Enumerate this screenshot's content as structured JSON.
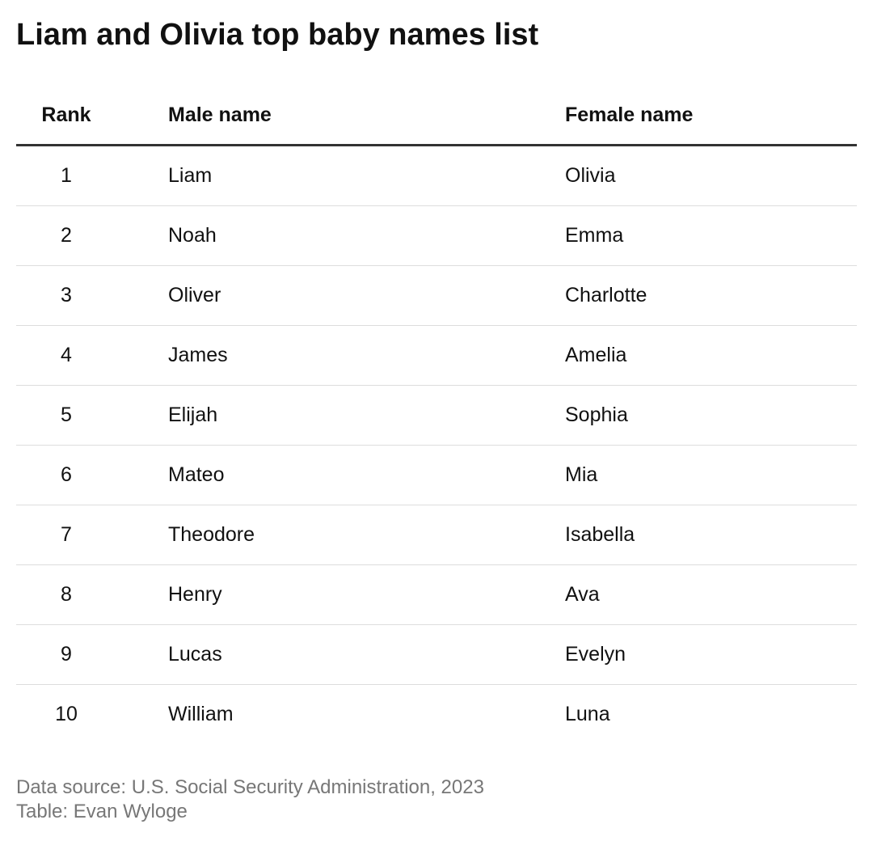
{
  "header": {
    "title": "Liam and Olivia top baby names list"
  },
  "table": {
    "columns": [
      "Rank",
      "Male name",
      "Female name"
    ],
    "rows": [
      [
        "1",
        "Liam",
        "Olivia"
      ],
      [
        "2",
        "Noah",
        "Emma"
      ],
      [
        "3",
        "Oliver",
        "Charlotte"
      ],
      [
        "4",
        "James",
        "Amelia"
      ],
      [
        "5",
        "Elijah",
        "Sophia"
      ],
      [
        "6",
        "Mateo",
        "Mia"
      ],
      [
        "7",
        "Theodore",
        "Isabella"
      ],
      [
        "8",
        "Henry",
        "Ava"
      ],
      [
        "9",
        "Lucas",
        "Evelyn"
      ],
      [
        "10",
        "William",
        "Luna"
      ]
    ]
  },
  "footer": {
    "source": "Data source: U.S. Social Security Administration, 2023",
    "credit": "Table: Evan Wyloge"
  }
}
